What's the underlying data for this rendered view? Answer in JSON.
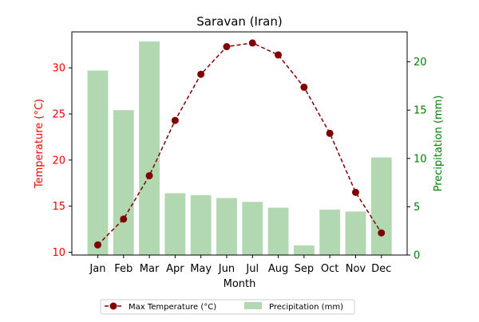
{
  "chart_data": {
    "type": "bar+line",
    "title": "Saravan (Iran)",
    "xlabel": "Month",
    "categories": [
      "Jan",
      "Feb",
      "Mar",
      "Apr",
      "May",
      "Jun",
      "Jul",
      "Aug",
      "Sep",
      "Oct",
      "Nov",
      "Dec"
    ],
    "left_axis": {
      "label": "Temperature (°C)",
      "ylim": [
        9.7,
        33.9
      ],
      "ticks": [
        10,
        15,
        20,
        25,
        30
      ],
      "color": "#ff0000"
    },
    "right_axis": {
      "label": "Precipitation (mm)",
      "ylim": [
        0,
        23.1
      ],
      "ticks": [
        0,
        5,
        10,
        15,
        20
      ],
      "color": "#008000"
    },
    "series": [
      {
        "name": "Max Temperature (°C)",
        "kind": "line",
        "axis": "left",
        "color": "#800000",
        "values": [
          10.8,
          13.6,
          18.3,
          24.3,
          29.3,
          32.3,
          32.7,
          31.4,
          27.9,
          22.9,
          16.5,
          12.1
        ]
      },
      {
        "name": "Precipitation (mm)",
        "kind": "bar",
        "axis": "right",
        "color": "#b2d8b2",
        "values": [
          19.1,
          15.0,
          22.1,
          6.4,
          6.2,
          5.9,
          5.5,
          4.9,
          1.0,
          4.7,
          4.5,
          10.1
        ]
      }
    ],
    "legend": {
      "placement": "bottom-center"
    },
    "grid": false
  }
}
